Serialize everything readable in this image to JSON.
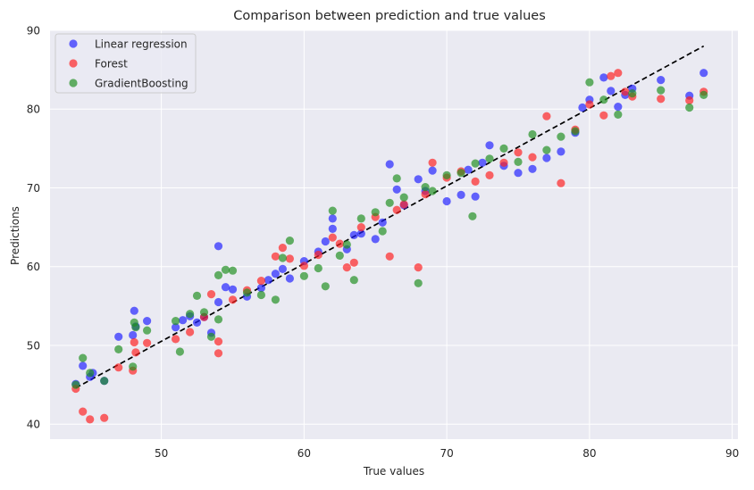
{
  "chart_data": {
    "type": "scatter",
    "title": "Comparison between prediction and true values",
    "xlabel": "True values",
    "ylabel": "Predictions",
    "xlim": [
      42.2,
      90.4
    ],
    "ylim": [
      38.1,
      90.0
    ],
    "xticks": [
      50,
      60,
      70,
      80,
      90
    ],
    "yticks": [
      40,
      50,
      60,
      70,
      80,
      90
    ],
    "grid": true,
    "legend_position": "top-left",
    "reference_line": {
      "style": "dashed",
      "color": "#000000",
      "x": [
        44,
        88
      ],
      "y": [
        44.6,
        88.0
      ]
    },
    "series": [
      {
        "name": "Linear regression",
        "color": "#1f1fff",
        "points": [
          [
            44,
            45.1
          ],
          [
            44.5,
            47.4
          ],
          [
            45,
            46
          ],
          [
            45.2,
            46.5
          ],
          [
            46,
            45.5
          ],
          [
            47,
            51.1
          ],
          [
            48,
            51.3
          ],
          [
            48.1,
            54.4
          ],
          [
            48.2,
            52.4
          ],
          [
            49,
            53.1
          ],
          [
            51,
            52.3
          ],
          [
            51.5,
            53.2
          ],
          [
            52,
            53.7
          ],
          [
            52.5,
            52.9
          ],
          [
            53,
            53.6
          ],
          [
            53.5,
            51.6
          ],
          [
            54,
            62.6
          ],
          [
            54,
            55.5
          ],
          [
            54.5,
            57.4
          ],
          [
            55,
            57.1
          ],
          [
            56,
            56.2
          ],
          [
            57,
            57.3
          ],
          [
            57.5,
            58.3
          ],
          [
            58,
            59.1
          ],
          [
            58.5,
            59.7
          ],
          [
            59,
            58.5
          ],
          [
            60,
            60.7
          ],
          [
            61,
            61.9
          ],
          [
            61.5,
            63.2
          ],
          [
            62,
            64.8
          ],
          [
            62,
            66.1
          ],
          [
            63,
            62.2
          ],
          [
            63.5,
            64.0
          ],
          [
            64,
            64.2
          ],
          [
            65,
            63.5
          ],
          [
            65.5,
            65.6
          ],
          [
            66,
            73.0
          ],
          [
            66.5,
            69.8
          ],
          [
            67,
            67.8
          ],
          [
            68,
            71.1
          ],
          [
            68.5,
            69.6
          ],
          [
            69,
            72.2
          ],
          [
            70,
            68.3
          ],
          [
            71,
            69.1
          ],
          [
            71.5,
            72.3
          ],
          [
            72,
            68.9
          ],
          [
            72.5,
            73.2
          ],
          [
            73,
            75.4
          ],
          [
            74,
            72.8
          ],
          [
            75,
            71.9
          ],
          [
            76,
            72.4
          ],
          [
            77,
            73.8
          ],
          [
            78,
            74.6
          ],
          [
            79,
            77.0
          ],
          [
            79.5,
            80.2
          ],
          [
            80,
            81.2
          ],
          [
            81,
            84.0
          ],
          [
            81.5,
            82.3
          ],
          [
            82,
            80.3
          ],
          [
            82.5,
            81.8
          ],
          [
            83,
            82.6
          ],
          [
            85,
            83.7
          ],
          [
            87,
            81.7
          ],
          [
            88,
            84.6
          ]
        ]
      },
      {
        "name": "Forest",
        "color": "#ff1f1f",
        "points": [
          [
            44,
            44.5
          ],
          [
            44.5,
            41.6
          ],
          [
            45,
            40.6
          ],
          [
            46,
            40.8
          ],
          [
            47,
            47.2
          ],
          [
            48,
            46.8
          ],
          [
            48.1,
            50.4
          ],
          [
            48.2,
            49.1
          ],
          [
            49,
            50.3
          ],
          [
            51,
            50.8
          ],
          [
            52,
            51.7
          ],
          [
            53,
            53.6
          ],
          [
            53.5,
            56.5
          ],
          [
            54,
            50.5
          ],
          [
            54,
            49.0
          ],
          [
            55,
            55.8
          ],
          [
            56,
            57.0
          ],
          [
            57,
            58.2
          ],
          [
            58,
            61.3
          ],
          [
            58.5,
            62.4
          ],
          [
            59,
            61.0
          ],
          [
            60,
            60.1
          ],
          [
            61,
            61.5
          ],
          [
            62,
            63.7
          ],
          [
            62.5,
            62.9
          ],
          [
            63,
            59.9
          ],
          [
            63.5,
            60.5
          ],
          [
            64,
            65.0
          ],
          [
            65,
            66.3
          ],
          [
            66,
            61.3
          ],
          [
            66.5,
            67.2
          ],
          [
            67,
            67.9
          ],
          [
            68,
            59.9
          ],
          [
            68.5,
            69.2
          ],
          [
            69,
            73.2
          ],
          [
            70,
            71.3
          ],
          [
            71,
            72.1
          ],
          [
            72,
            70.8
          ],
          [
            73,
            71.6
          ],
          [
            74,
            73.2
          ],
          [
            75,
            74.5
          ],
          [
            76,
            73.9
          ],
          [
            77,
            79.1
          ],
          [
            78,
            70.6
          ],
          [
            79,
            77.4
          ],
          [
            80,
            80.6
          ],
          [
            81,
            79.2
          ],
          [
            81.5,
            84.2
          ],
          [
            82,
            84.6
          ],
          [
            82.5,
            82.2
          ],
          [
            83,
            81.6
          ],
          [
            85,
            81.3
          ],
          [
            87,
            81.1
          ],
          [
            88,
            82.2
          ]
        ]
      },
      {
        "name": "GradientBoosting",
        "color": "#1f8f1f",
        "points": [
          [
            44,
            45.0
          ],
          [
            44.5,
            48.4
          ],
          [
            45,
            46.5
          ],
          [
            46,
            45.5
          ],
          [
            47,
            49.5
          ],
          [
            48,
            47.3
          ],
          [
            48.1,
            52.9
          ],
          [
            48.2,
            52.3
          ],
          [
            49,
            51.9
          ],
          [
            51,
            53.1
          ],
          [
            51.3,
            49.2
          ],
          [
            52,
            54.0
          ],
          [
            52.5,
            56.3
          ],
          [
            53,
            54.2
          ],
          [
            53.5,
            51.1
          ],
          [
            54,
            58.9
          ],
          [
            54,
            53.3
          ],
          [
            54.5,
            59.6
          ],
          [
            55,
            59.5
          ],
          [
            56,
            56.7
          ],
          [
            57,
            56.4
          ],
          [
            58,
            55.8
          ],
          [
            58.5,
            61.1
          ],
          [
            59,
            63.3
          ],
          [
            60,
            58.8
          ],
          [
            61,
            59.8
          ],
          [
            61.5,
            57.5
          ],
          [
            62,
            67.1
          ],
          [
            62.5,
            61.4
          ],
          [
            63,
            62.8
          ],
          [
            63.5,
            58.3
          ],
          [
            64,
            66.1
          ],
          [
            65,
            66.9
          ],
          [
            65.5,
            64.5
          ],
          [
            66,
            68.1
          ],
          [
            66.5,
            71.2
          ],
          [
            67,
            68.8
          ],
          [
            68,
            57.9
          ],
          [
            68.5,
            70.1
          ],
          [
            69,
            69.6
          ],
          [
            70,
            71.6
          ],
          [
            71,
            71.9
          ],
          [
            71.8,
            66.4
          ],
          [
            72,
            73.1
          ],
          [
            73,
            73.7
          ],
          [
            74,
            75.0
          ],
          [
            75,
            73.3
          ],
          [
            76,
            76.8
          ],
          [
            77,
            74.8
          ],
          [
            78,
            76.5
          ],
          [
            79,
            77.2
          ],
          [
            80,
            83.4
          ],
          [
            81,
            81.2
          ],
          [
            82,
            79.3
          ],
          [
            83,
            82.0
          ],
          [
            85,
            82.4
          ],
          [
            87,
            80.2
          ],
          [
            88,
            81.8
          ]
        ]
      }
    ]
  }
}
